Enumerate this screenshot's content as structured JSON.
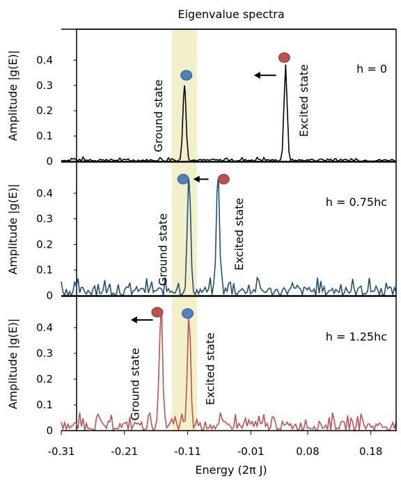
{
  "chart_data": {
    "type": "line",
    "title": "Eigenvalue spectra",
    "xlabel": "Energy (2π J)",
    "x_ticks": [
      "-0.31",
      "-0.21",
      "-0.11",
      "-0.01",
      "0.08",
      "0.18"
    ],
    "xlim": [
      -0.31,
      0.22
    ],
    "highlight_band": {
      "x": [
        -0.135,
        -0.095
      ],
      "color": "#f2f0c8"
    },
    "marker_colors": {
      "red": "#c0504d",
      "blue": "#4f81bd"
    },
    "panels": [
      {
        "ylabel": "Amplitude  |g(E)|",
        "y_ticks": [
          "0",
          "0.1",
          "0.2",
          "0.3",
          "0.4"
        ],
        "ylim": [
          0,
          0.5
        ],
        "field_label": "h = 0",
        "series_color": "#000000",
        "ground_label": "Ground state",
        "excited_label": "Excited state",
        "ground_peak": {
          "x": -0.115,
          "y": 0.3
        },
        "excited_peak": {
          "x": 0.045,
          "y": 0.375
        },
        "arrow": {
          "from_x": 0.03,
          "to_x": -0.005,
          "y": 0.34
        },
        "markers": [
          {
            "x": -0.112,
            "y": 0.34,
            "color": "blue"
          },
          {
            "x": 0.043,
            "y": 0.41,
            "color": "red"
          }
        ],
        "noise": 0.003
      },
      {
        "ylabel": "Amplitude  |g(E)|",
        "y_ticks": [
          "0",
          "0.1",
          "0.2",
          "0.3",
          "0.4"
        ],
        "ylim": [
          0,
          0.5
        ],
        "field_label": "h = 0.75hc",
        "series_color": "#1f4e79",
        "ground_label": "Ground state",
        "excited_label": "Excited state",
        "ground_peak": {
          "x": -0.108,
          "y": 0.455
        },
        "excited_peak": {
          "x": -0.062,
          "y": 0.455
        },
        "arrow": {
          "from_x": -0.077,
          "to_x": -0.101,
          "y": 0.455
        },
        "markers": [
          {
            "x": -0.117,
            "y": 0.455,
            "color": "blue"
          },
          {
            "x": -0.053,
            "y": 0.455,
            "color": "red"
          }
        ],
        "noise": 0.012
      },
      {
        "ylabel": "Amplitude  |g(E)|",
        "y_ticks": [
          "0",
          "0.1",
          "0.2",
          "0.3",
          "0.4"
        ],
        "ylim": [
          0,
          0.5
        ],
        "field_label": "h = 1.25hc",
        "series_color": "#c0504d",
        "ground_label": "Ground state",
        "excited_label": "Excited state",
        "ground_peak": {
          "x": -0.152,
          "y": 0.46
        },
        "excited_peak": {
          "x": -0.108,
          "y": 0.42
        },
        "arrow": {
          "from_x": -0.165,
          "to_x": -0.2,
          "y": 0.43
        },
        "markers": [
          {
            "x": -0.158,
            "y": 0.46,
            "color": "red"
          },
          {
            "x": -0.11,
            "y": 0.455,
            "color": "blue"
          }
        ],
        "noise": 0.012
      }
    ]
  }
}
